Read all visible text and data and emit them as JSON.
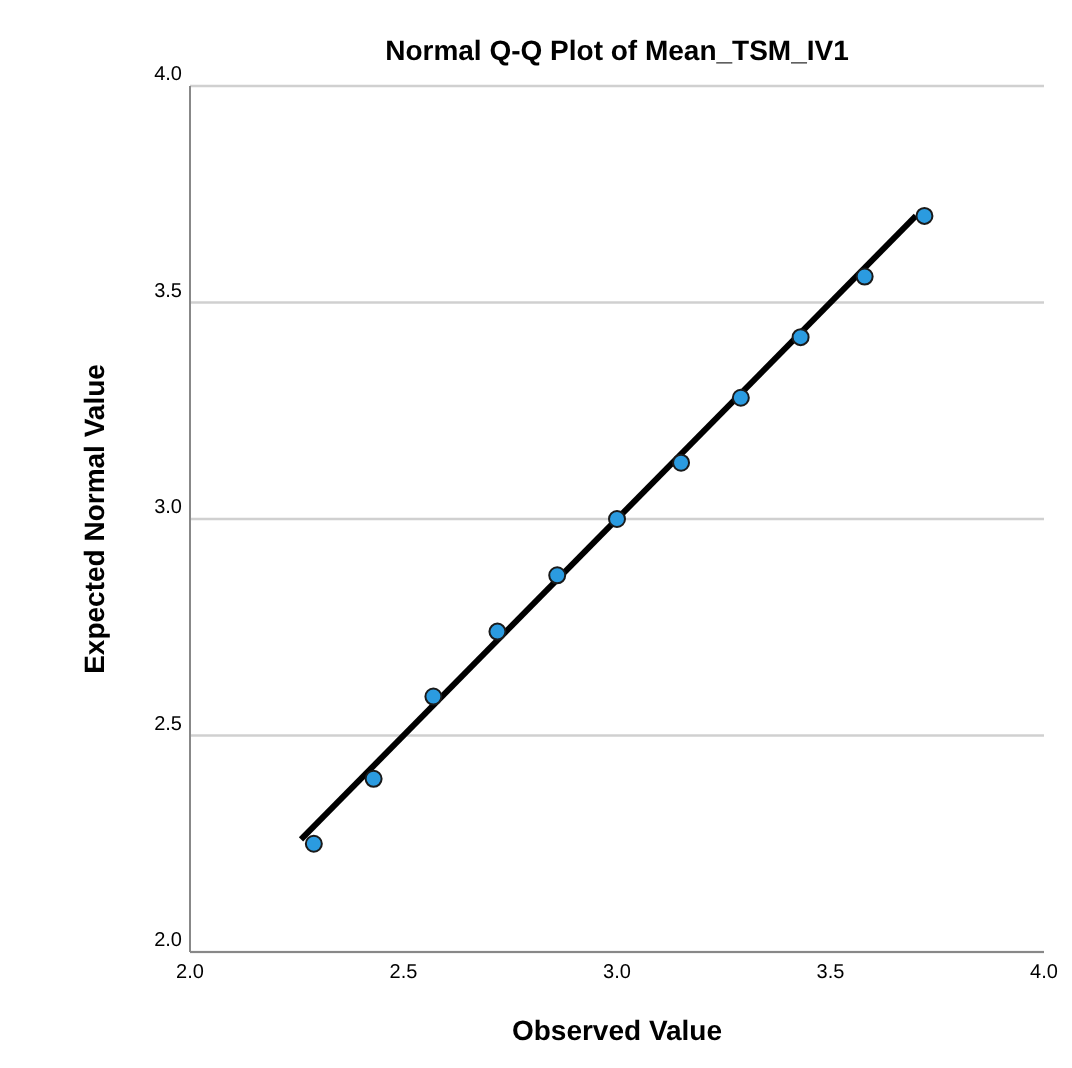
{
  "chart_data": {
    "type": "scatter",
    "title": "Normal Q-Q Plot of Mean_TSM_IV1",
    "xlabel": "Observed Value",
    "ylabel": "Expected Normal Value",
    "xlim": [
      2.0,
      4.0
    ],
    "ylim": [
      2.0,
      4.0
    ],
    "xticks": [
      {
        "value": 2,
        "label": "2.0"
      },
      2.5,
      {
        "value": 3,
        "label": "3.0"
      },
      3.5,
      {
        "value": 4,
        "label": "4.0"
      }
    ],
    "yticks": [
      {
        "value": 2,
        "label": "2.0"
      },
      2.5,
      {
        "value": 3,
        "label": "3.0"
      },
      3.5,
      {
        "value": 4,
        "label": "4.0"
      }
    ],
    "grid": "y",
    "marker": "circle",
    "series": [
      {
        "color": "#2b9be0",
        "x": [
          2.29,
          2.43,
          2.57,
          2.72,
          2.86,
          3.0,
          3.15,
          3.29,
          3.43,
          3.58,
          3.72
        ],
        "values": [
          2.25,
          2.4,
          2.59,
          2.74,
          2.87,
          3.0,
          3.13,
          3.28,
          3.42,
          3.56,
          3.7
        ]
      },
      {
        "type": "line",
        "color": "#000000",
        "line_style": "solid",
        "marker": "none",
        "x": [
          2.26,
          3.7
        ],
        "values": [
          2.26,
          3.7
        ]
      }
    ]
  }
}
